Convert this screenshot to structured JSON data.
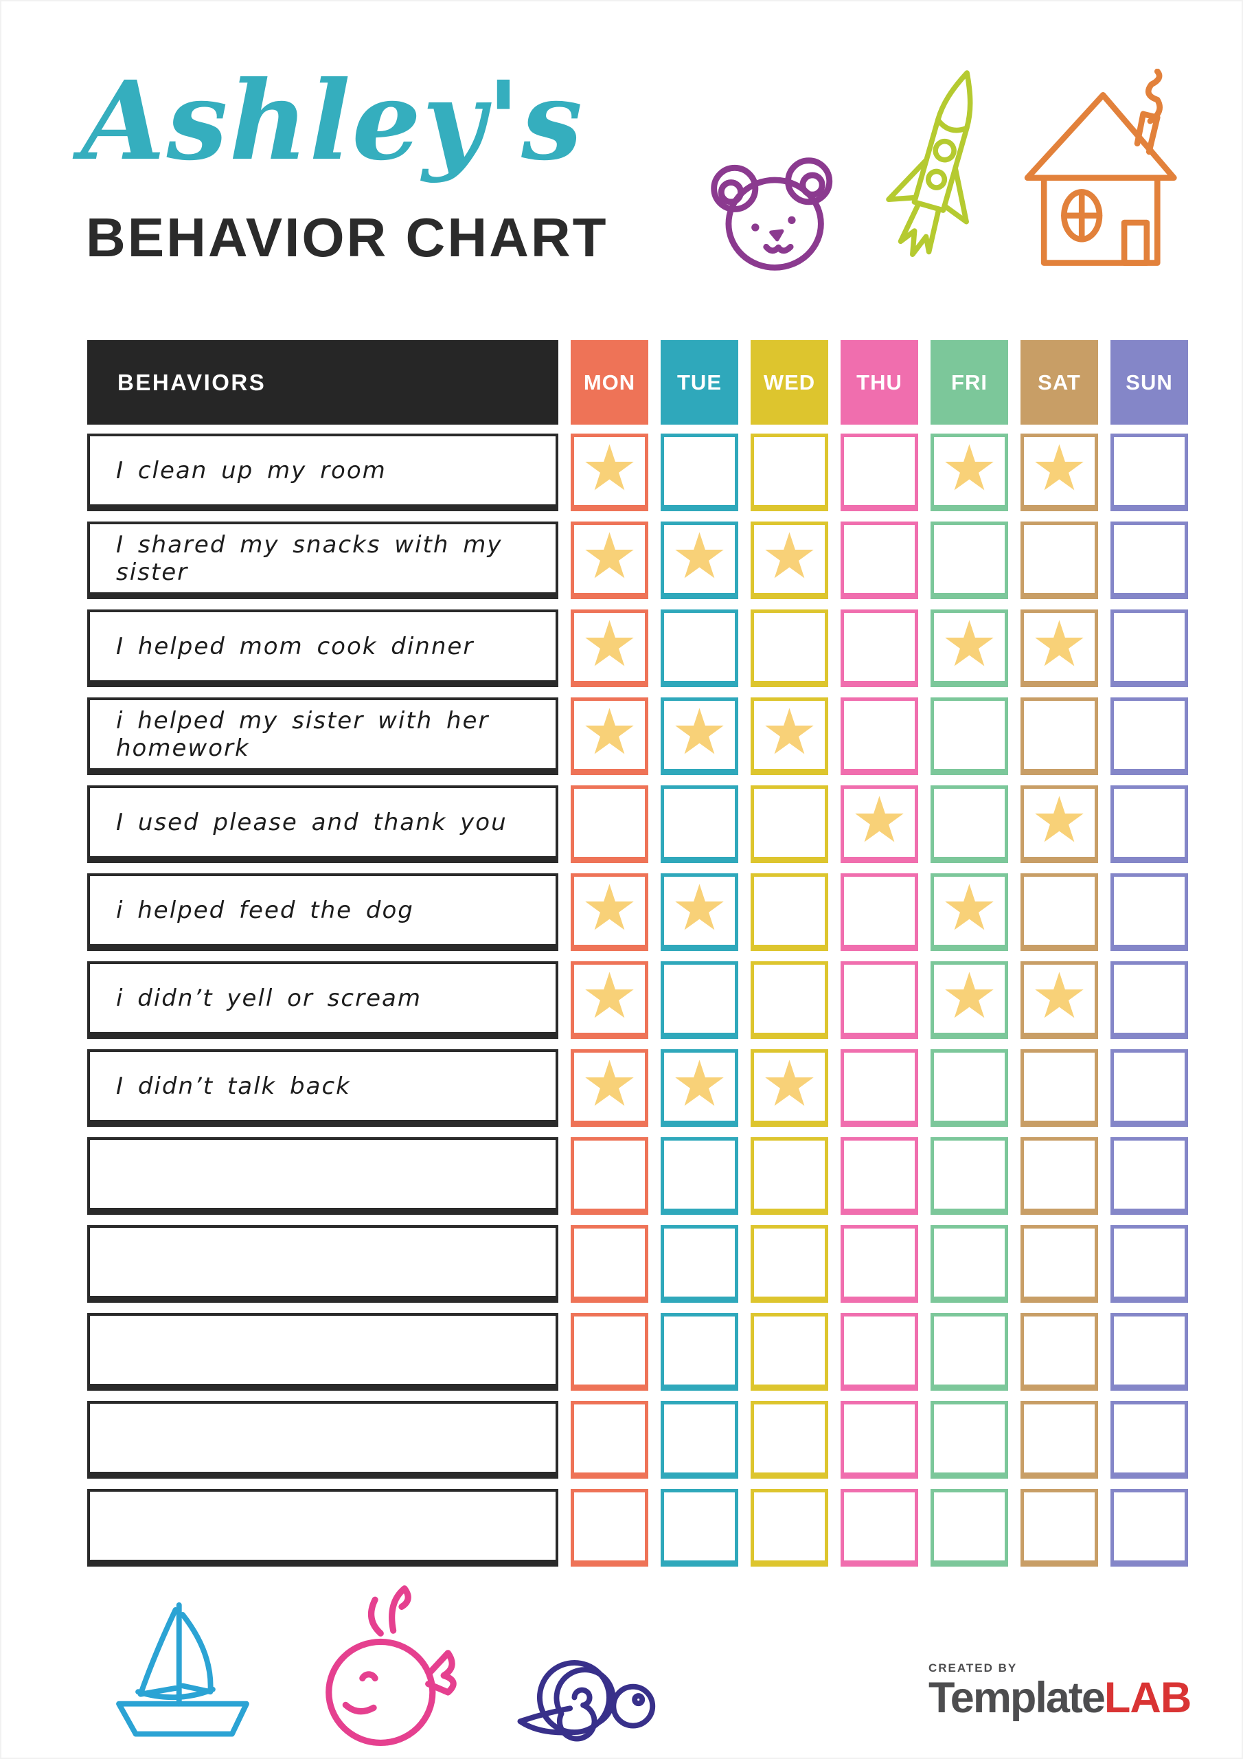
{
  "page": {
    "title": "Ashley's",
    "subtitle": "BEHAVIOR CHART"
  },
  "decorations": {
    "top_icons": [
      "bear-icon",
      "rocket-icon",
      "house-icon"
    ],
    "bottom_icons": [
      "sailboat-icon",
      "whale-icon",
      "snail-icon"
    ]
  },
  "table": {
    "behaviors_header": "BEHAVIORS",
    "star_glyph": "★",
    "star_color": "#F8D178",
    "days": [
      {
        "label": "MON",
        "color": "#EE7357"
      },
      {
        "label": "TUE",
        "color": "#2FA8BB"
      },
      {
        "label": "WED",
        "color": "#DDC52E"
      },
      {
        "label": "THU",
        "color": "#F06EAE"
      },
      {
        "label": "FRI",
        "color": "#7CC79A"
      },
      {
        "label": "SAT",
        "color": "#C89E66"
      },
      {
        "label": "SUN",
        "color": "#8486C8"
      }
    ],
    "rows": [
      {
        "label": "I clean up my room",
        "stars": [
          "MON",
          "FRI",
          "SAT"
        ]
      },
      {
        "label": "I shared my snacks with my sister",
        "stars": [
          "MON",
          "TUE",
          "WED"
        ]
      },
      {
        "label": "I helped mom cook dinner",
        "stars": [
          "MON",
          "FRI",
          "SAT"
        ]
      },
      {
        "label": "i helped my sister with her homework",
        "stars": [
          "MON",
          "TUE",
          "WED"
        ]
      },
      {
        "label": "I used please and thank you",
        "stars": [
          "THU",
          "SAT"
        ]
      },
      {
        "label": "i helped feed the dog",
        "stars": [
          "MON",
          "TUE",
          "FRI"
        ]
      },
      {
        "label": "i didn’t yell or scream",
        "stars": [
          "MON",
          "FRI",
          "SAT"
        ]
      },
      {
        "label": "I didn’t talk back",
        "stars": [
          "MON",
          "TUE",
          "WED"
        ]
      },
      {
        "label": "",
        "stars": []
      },
      {
        "label": "",
        "stars": []
      },
      {
        "label": "",
        "stars": []
      },
      {
        "label": "",
        "stars": []
      },
      {
        "label": "",
        "stars": []
      }
    ]
  },
  "footer": {
    "logo": {
      "created_by": "CREATED BY",
      "brand_primary": "Template",
      "brand_accent": "LAB"
    }
  },
  "colors": {
    "title_script": "#35AEBE",
    "subtitle": "#2B2B2B",
    "header_bg": "#262626",
    "row_border": "#2A2A2A",
    "doodle_bear": "#8B3A8F",
    "doodle_rocket": "#B5CA30",
    "doodle_house": "#E2813B",
    "doodle_boat": "#2BA3D4",
    "doodle_whale": "#E5408F",
    "doodle_snail": "#38308A",
    "logo_gray": "#4D4D4F",
    "logo_red": "#D93434"
  }
}
